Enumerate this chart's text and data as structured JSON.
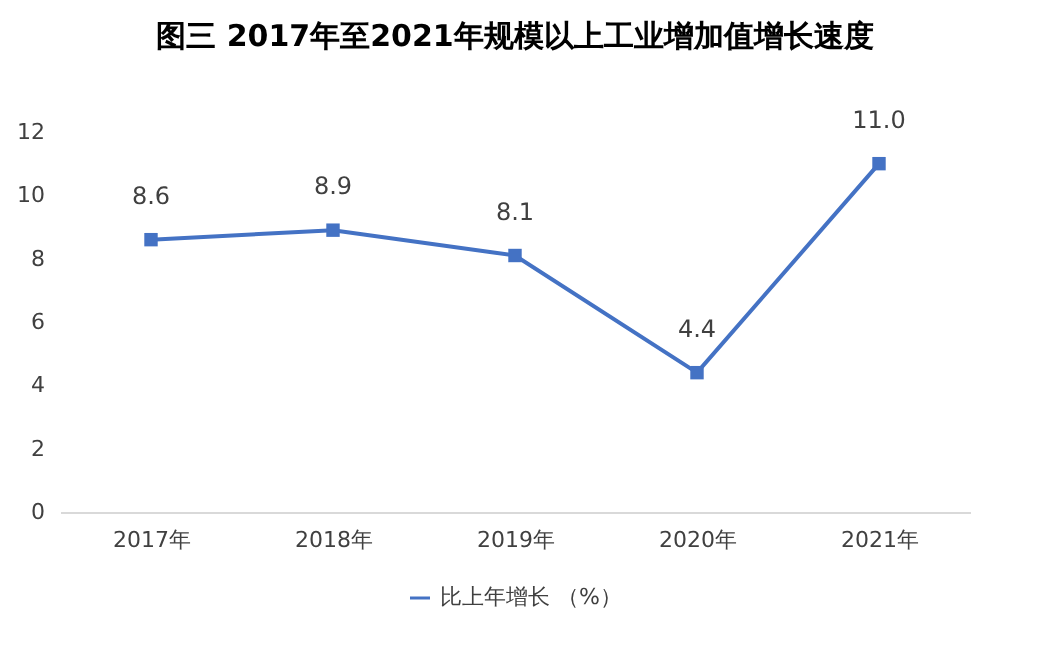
{
  "chart_data": {
    "type": "line",
    "title": "图三 2017年至2021年规模以上工业增加值增长速度",
    "categories": [
      "2017年",
      "2018年",
      "2019年",
      "2020年",
      "2021年"
    ],
    "series": [
      {
        "name": "比上年增长 （%）",
        "color": "#4472c4",
        "values": [
          8.6,
          8.9,
          8.1,
          4.4,
          11.0
        ]
      }
    ],
    "value_labels": [
      "8.6",
      "8.9",
      "8.1",
      "4.4",
      "11.0"
    ],
    "ylim": [
      0,
      12
    ],
    "yticks": [
      0,
      2,
      4,
      6,
      8,
      10,
      12
    ],
    "grid": false,
    "legend": "bottom",
    "marker": "square",
    "line_style": "solid"
  }
}
